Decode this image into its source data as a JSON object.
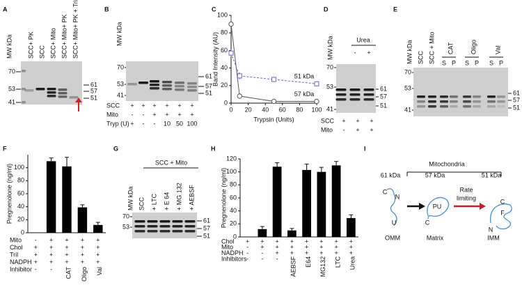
{
  "panels": {
    "A": {
      "label": "A",
      "mw_label": "MW  kDa",
      "lanes": [
        "SCC+ PK",
        "SCC",
        "SCC+ Mito",
        "SCC+ Mito+ PK",
        "SCC+ Mito+ PK + Triton"
      ],
      "left_markers": [
        70,
        53,
        41
      ],
      "right_markers": [
        61,
        57,
        51
      ]
    },
    "B": {
      "label": "B",
      "mw_label": "MW kDa",
      "left_markers": [
        70,
        53,
        41
      ],
      "right_markers": [
        61,
        57,
        51
      ],
      "rows": [
        {
          "label": "SCC",
          "cells": [
            "+",
            "+",
            "+",
            "+",
            "+",
            "+"
          ]
        },
        {
          "label": "Mito",
          "cells": [
            "-",
            "-",
            "+",
            "+",
            "+",
            "+"
          ]
        },
        {
          "label": "Tryp (U)",
          "cells": [
            "+",
            "-",
            "-",
            "10",
            "50",
            "100"
          ]
        }
      ]
    },
    "D": {
      "label": "D",
      "mw_label": "MW kDa",
      "bracket": "Urea",
      "lanes": [
        "-",
        "+"
      ],
      "left_markers": [
        70,
        53,
        41
      ],
      "right_markers": [
        61,
        57,
        51
      ],
      "rows": [
        {
          "label": "SCC",
          "cells": [
            "+",
            "+",
            "+"
          ]
        },
        {
          "label": "Mito",
          "cells": [
            "-",
            "+",
            "+"
          ]
        }
      ]
    },
    "E": {
      "label": "E",
      "mw_label": "MW kDa",
      "lanes": [
        "SCC",
        "SCC + Mito"
      ],
      "groups": [
        {
          "name": "CAT",
          "lanes": [
            "S",
            "P"
          ]
        },
        {
          "name": "Oligo",
          "lanes": [
            "S",
            "P"
          ]
        },
        {
          "name": "Val",
          "lanes": [
            "S",
            "P"
          ]
        }
      ],
      "left_markers": [
        70,
        53,
        41
      ],
      "right_markers": [
        61,
        57,
        51
      ]
    },
    "G": {
      "label": "G",
      "bracket": "SCC + Mito",
      "lanes": [
        "MW kDa",
        "SCC",
        "+ LTC",
        "+ E 64",
        "+ MG 132",
        "+ AEBSF"
      ],
      "left_markers": [
        70,
        53
      ],
      "right_markers": [
        61,
        57,
        51
      ]
    },
    "I": {
      "label": "I",
      "title": "Mitochondria",
      "arrow_label": [
        "Rate",
        "limiting"
      ],
      "stages": [
        {
          "name": "61 kDa",
          "marks": [
            "C",
            "N",
            "U"
          ],
          "location": "OMM"
        },
        {
          "name": "57 kDa",
          "marks": [
            "PU",
            "C"
          ],
          "location": "Matrix"
        },
        {
          "name": "51 kDa",
          "marks": [
            "C",
            "F",
            "N"
          ],
          "location": "IMM"
        }
      ]
    }
  },
  "chart_data": [
    {
      "type": "line",
      "panel": "C",
      "x_label": "Trypsin (Units)",
      "y_label": "Band Intensity (AU)",
      "x": [
        0,
        10,
        50,
        100
      ],
      "xlim": [
        0,
        100
      ],
      "xticks": [
        0,
        20,
        40,
        60,
        80,
        100
      ],
      "ylim": [
        0,
        100
      ],
      "yticks": [
        0,
        20,
        40,
        60,
        80,
        100
      ],
      "series": [
        {
          "name": "57 kDa",
          "color": "#555555",
          "dashed": false,
          "values": [
            90,
            8,
            2,
            2
          ],
          "errors": [
            8,
            3,
            1,
            1
          ]
        },
        {
          "name": "51 kDa",
          "color": "#7a5fc8",
          "dashed": true,
          "values": [
            57,
            31,
            27,
            22
          ],
          "errors": [
            4,
            4,
            3,
            3
          ]
        }
      ]
    },
    {
      "type": "bar",
      "panel": "F",
      "y_label": "Pregnenolone (ng/ml)",
      "color": "#000000",
      "values": [
        0,
        110,
        102,
        39,
        12
      ],
      "errors": [
        null,
        5,
        14,
        4,
        4
      ],
      "ylim": [
        0,
        120
      ],
      "yticks": [
        0,
        20,
        40,
        60,
        80,
        100
      ],
      "rows": [
        {
          "label": "Mito",
          "cells": [
            "-",
            "+",
            "+",
            "+",
            "+"
          ]
        },
        {
          "label": "Chol",
          "cells": [
            "+",
            "+",
            "+",
            "+",
            "+"
          ]
        },
        {
          "label": "Tril",
          "cells": [
            "+",
            "+",
            "+",
            "+",
            "+"
          ]
        },
        {
          "label": "NADPH",
          "cells": [
            "+",
            "+",
            "+",
            "+",
            "+"
          ]
        },
        {
          "label": "Inhibitor",
          "cells": [
            "-",
            "-",
            "CAT",
            "Oligo",
            "Val"
          ]
        }
      ]
    },
    {
      "type": "bar",
      "panel": "H",
      "y_label": "Pregnenolone (ng/ml)",
      "color": "#000000",
      "values": [
        0,
        12,
        108,
        10,
        103,
        100,
        110,
        29
      ],
      "errors": [
        null,
        4,
        6,
        3,
        9,
        7,
        6,
        5
      ],
      "ylim": [
        0,
        120
      ],
      "yticks": [
        0,
        20,
        40,
        60,
        80,
        100,
        120
      ],
      "rows": [
        {
          "label": "Chol",
          "cells": [
            "+",
            "+",
            "+",
            "+",
            "+",
            "+",
            "+",
            "+"
          ]
        },
        {
          "label": "Mito",
          "cells": [
            "-",
            "+",
            "+",
            "+",
            "+",
            "+",
            "+",
            "+"
          ]
        },
        {
          "label": "NADPH",
          "cells": [
            "-",
            "-",
            "+",
            "+",
            "+",
            "+",
            "+",
            "+"
          ]
        },
        {
          "label": "Inhibitors",
          "cells": [
            "-",
            "-",
            "-",
            "AEBSF",
            "E64",
            "MG132",
            "LTC",
            "Urea"
          ]
        }
      ]
    }
  ]
}
